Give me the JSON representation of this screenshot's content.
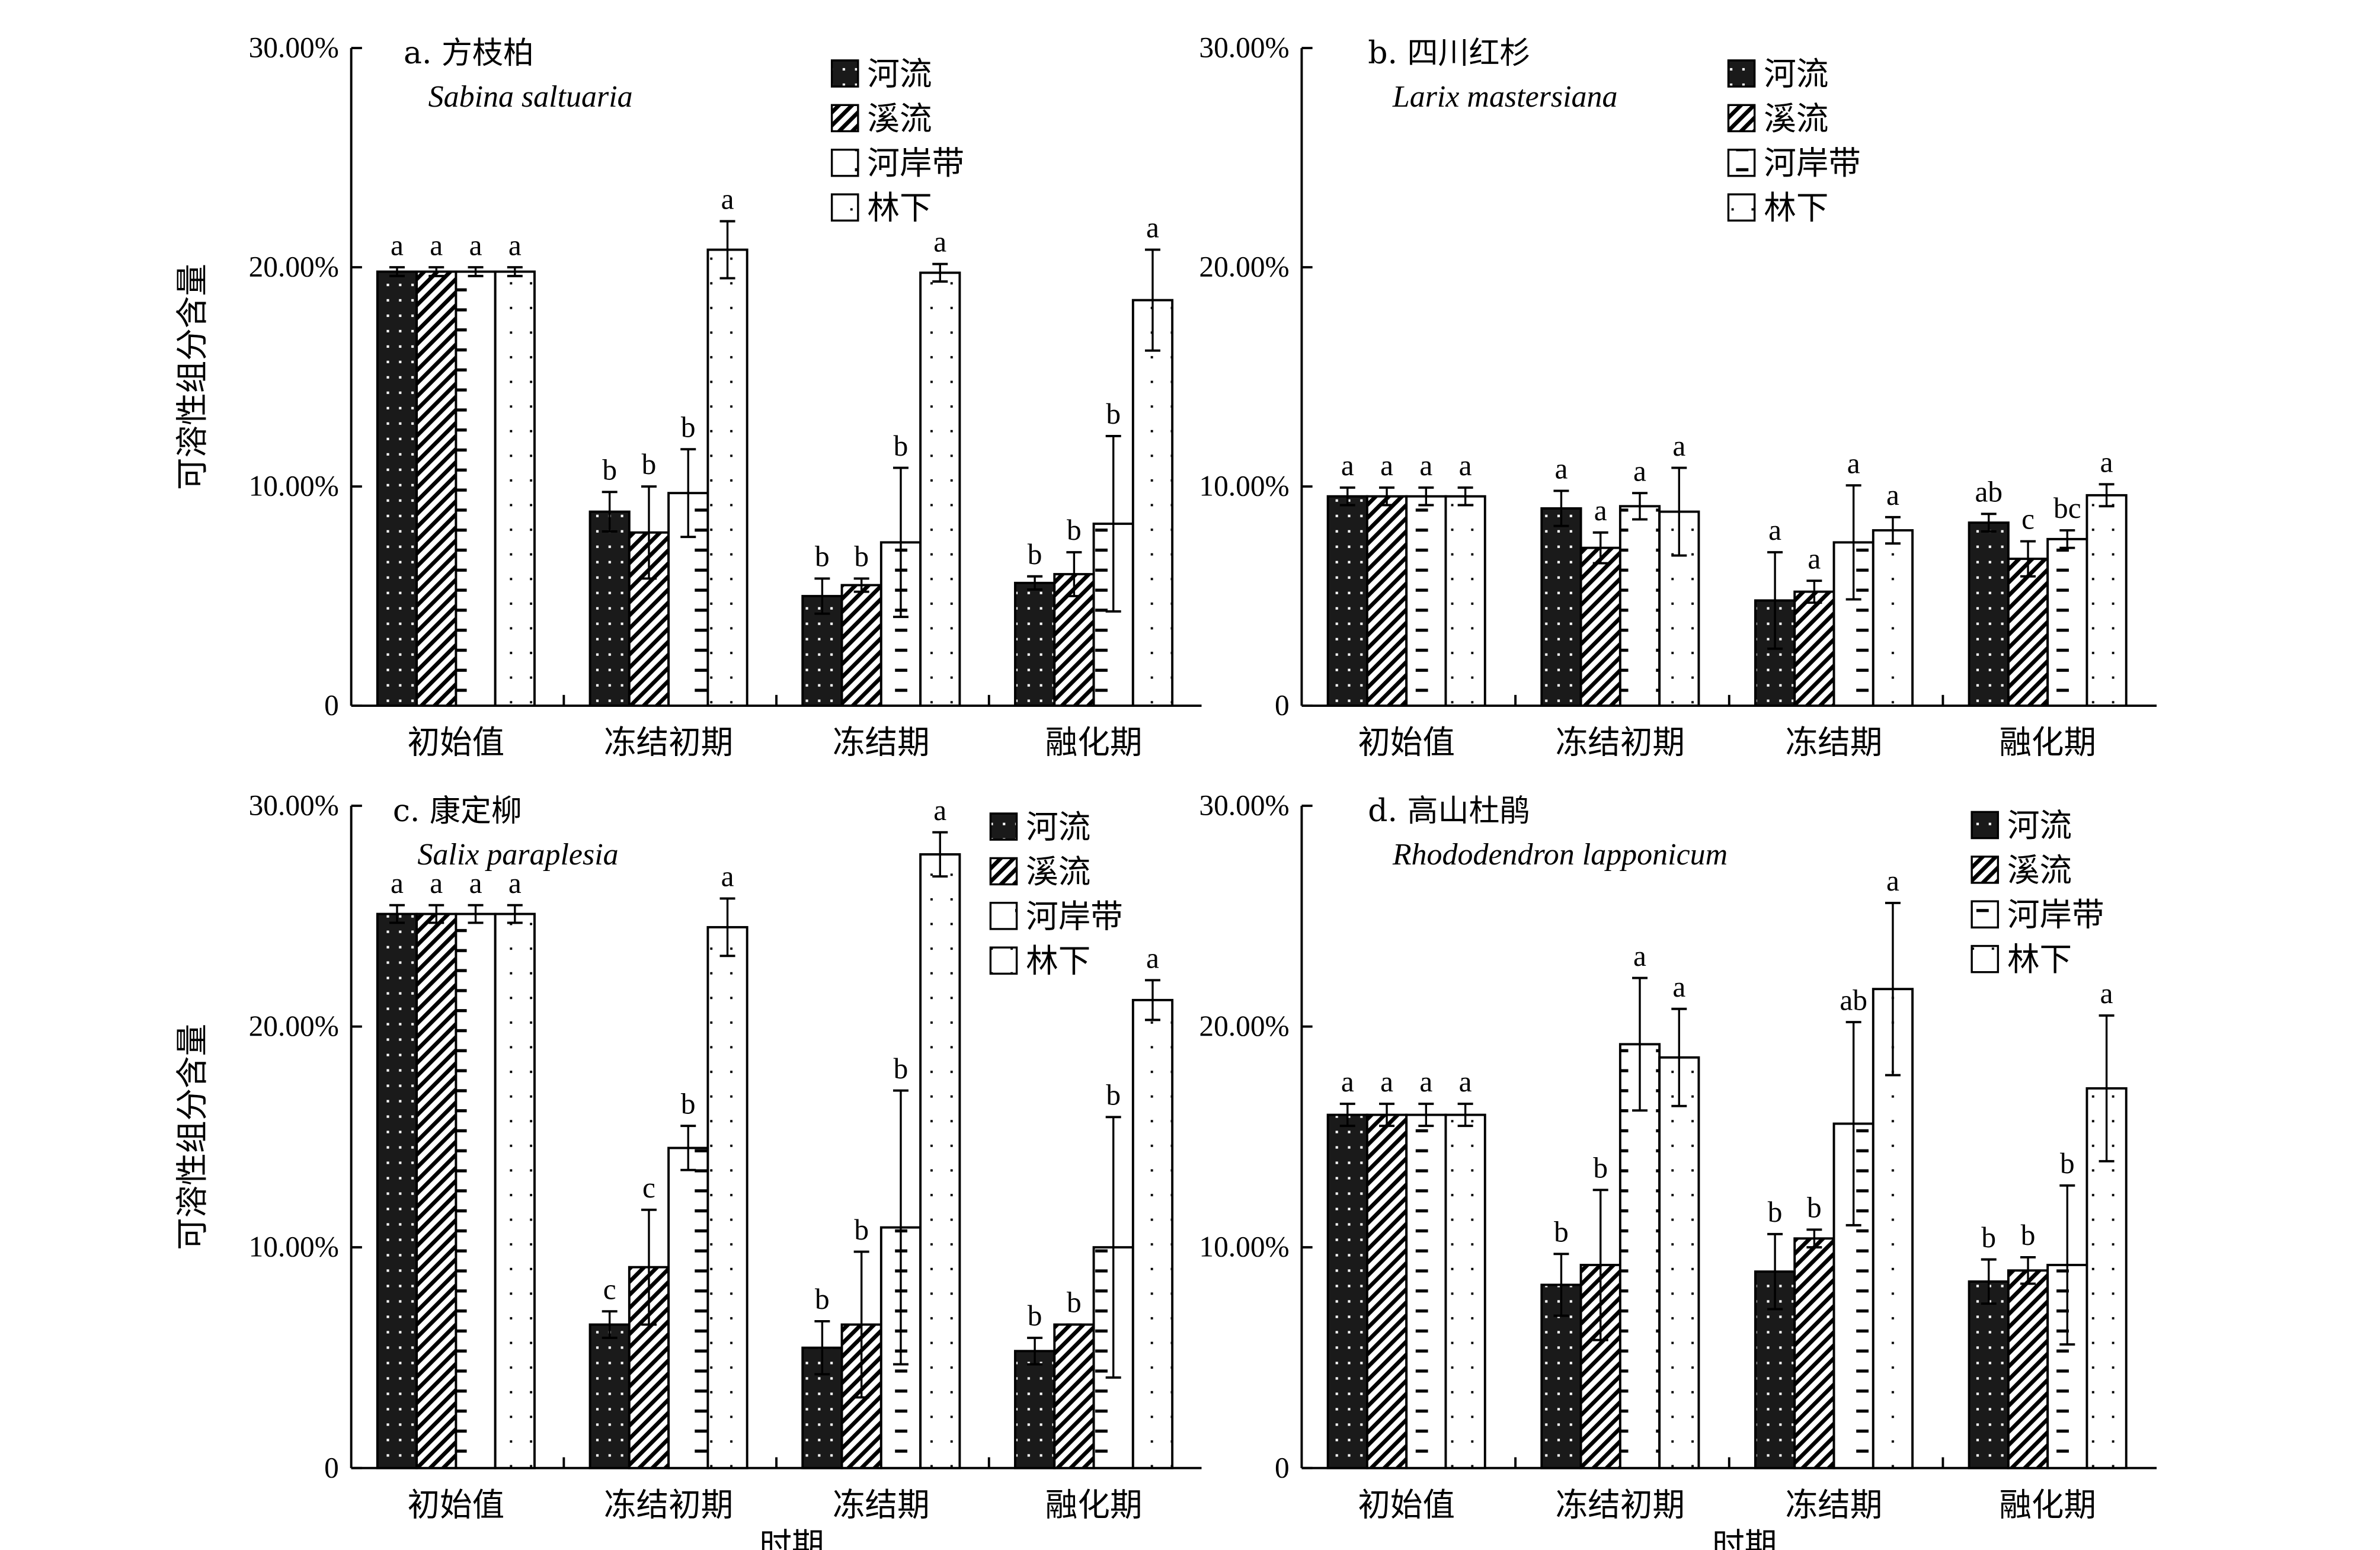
{
  "chart_data": [
    {
      "type": "bar",
      "panel": "a",
      "title": "a. 方枝柏",
      "subtitle": "Sabina saltuaria",
      "xlabel": "",
      "ylabel": "可溶性组分含量",
      "ylim": [
        0,
        30
      ],
      "yticks": [
        "0",
        "10.00%",
        "20.00%",
        "30.00%"
      ],
      "categories": [
        "初始值",
        "冻结初期",
        "冻结期",
        "融化期"
      ],
      "legend_position": "top-right",
      "series": [
        {
          "name": "河流",
          "pattern": "dots-on-black",
          "values": [
            19.8,
            8.85,
            5.0,
            5.6
          ],
          "errors": [
            0.2,
            0.9,
            0.8,
            0.3
          ],
          "letters": [
            "a",
            "b",
            "b",
            "b"
          ]
        },
        {
          "name": "溪流",
          "pattern": "diagonal-hatch",
          "values": [
            19.8,
            7.9,
            5.5,
            6.0
          ],
          "errors": [
            0.2,
            2.1,
            0.3,
            1.0
          ],
          "letters": [
            "a",
            "b",
            "b",
            "b"
          ]
        },
        {
          "name": "河岸带",
          "pattern": "dashes",
          "values": [
            19.8,
            9.7,
            7.45,
            8.3
          ],
          "errors": [
            0.2,
            2.0,
            3.4,
            4.0
          ],
          "letters": [
            "a",
            "b",
            "b",
            "b"
          ]
        },
        {
          "name": "林下",
          "pattern": "sparse-dots",
          "values": [
            19.8,
            20.8,
            19.75,
            18.5
          ],
          "errors": [
            0.2,
            1.3,
            0.4,
            2.3
          ],
          "letters": [
            "a",
            "a",
            "a",
            "a"
          ]
        }
      ]
    },
    {
      "type": "bar",
      "panel": "b",
      "title": "b. 四川红杉",
      "subtitle": "Larix mastersiana",
      "xlabel": "",
      "ylabel": "",
      "ylim": [
        0,
        30
      ],
      "yticks": [
        "0",
        "10.00%",
        "20.00%",
        "30.00%"
      ],
      "categories": [
        "初始值",
        "冻结初期",
        "冻结期",
        "融化期"
      ],
      "legend_position": "top-right",
      "series": [
        {
          "name": "河流",
          "pattern": "dots-on-black",
          "values": [
            9.55,
            9.0,
            4.8,
            8.35
          ],
          "errors": [
            0.4,
            0.8,
            2.2,
            0.4
          ],
          "letters": [
            "a",
            "a",
            "a",
            "ab"
          ]
        },
        {
          "name": "溪流",
          "pattern": "diagonal-hatch",
          "values": [
            9.55,
            7.2,
            5.2,
            6.7
          ],
          "errors": [
            0.4,
            0.7,
            0.5,
            0.8
          ],
          "letters": [
            "a",
            "a",
            "a",
            "c"
          ]
        },
        {
          "name": "河岸带",
          "pattern": "dashes",
          "values": [
            9.55,
            9.1,
            7.45,
            7.6
          ],
          "errors": [
            0.4,
            0.6,
            2.6,
            0.4
          ],
          "letters": [
            "a",
            "a",
            "a",
            "bc"
          ]
        },
        {
          "name": "林下",
          "pattern": "sparse-dots",
          "values": [
            9.55,
            8.85,
            8.0,
            9.6
          ],
          "errors": [
            0.4,
            2.0,
            0.6,
            0.5
          ],
          "letters": [
            "a",
            "a",
            "a",
            "a"
          ]
        }
      ]
    },
    {
      "type": "bar",
      "panel": "c",
      "title": "c. 康定柳",
      "subtitle": "Salix paraplesia",
      "xlabel": "时期",
      "ylabel": "可溶性组分含量",
      "ylim": [
        0,
        30
      ],
      "yticks": [
        "0",
        "10.00%",
        "20.00%",
        "30.00%"
      ],
      "categories": [
        "初始值",
        "冻结初期",
        "冻结期",
        "融化期"
      ],
      "legend_position": "top-center",
      "series": [
        {
          "name": "河流",
          "pattern": "dots-on-black",
          "values": [
            25.1,
            6.5,
            5.45,
            5.3
          ],
          "errors": [
            0.4,
            0.6,
            1.2,
            0.6
          ],
          "letters": [
            "a",
            "c",
            "b",
            "b"
          ]
        },
        {
          "name": "溪流",
          "pattern": "diagonal-hatch",
          "values": [
            25.1,
            9.1,
            6.5,
            6.5
          ],
          "errors": [
            0.4,
            2.6,
            3.3,
            0.0
          ],
          "letters": [
            "a",
            "c",
            "b",
            "b"
          ]
        },
        {
          "name": "河岸带",
          "pattern": "dashes",
          "values": [
            25.1,
            14.5,
            10.9,
            10.0
          ],
          "errors": [
            0.4,
            1.0,
            6.2,
            5.9
          ],
          "letters": [
            "a",
            "b",
            "b",
            "b"
          ]
        },
        {
          "name": "林下",
          "pattern": "sparse-dots",
          "values": [
            25.1,
            24.5,
            27.8,
            21.2
          ],
          "errors": [
            0.4,
            1.3,
            1.0,
            0.9
          ],
          "letters": [
            "a",
            "a",
            "a",
            "a"
          ]
        }
      ]
    },
    {
      "type": "bar",
      "panel": "d",
      "title": "d. 高山杜鹃",
      "subtitle": "Rhododendron lapponicum",
      "xlabel": "时期",
      "ylabel": "",
      "ylim": [
        0,
        30
      ],
      "yticks": [
        "0",
        "10.00%",
        "20.00%",
        "30.00%"
      ],
      "categories": [
        "初始值",
        "冻结初期",
        "冻结期",
        "融化期"
      ],
      "legend_position": "top-right",
      "series": [
        {
          "name": "河流",
          "pattern": "dots-on-black",
          "values": [
            16.0,
            8.3,
            8.9,
            8.45
          ],
          "errors": [
            0.5,
            1.4,
            1.7,
            1.0
          ],
          "letters": [
            "a",
            "b",
            "b",
            "b"
          ]
        },
        {
          "name": "溪流",
          "pattern": "diagonal-hatch",
          "values": [
            16.0,
            9.2,
            10.4,
            8.95
          ],
          "errors": [
            0.5,
            3.4,
            0.4,
            0.6
          ],
          "letters": [
            "a",
            "b",
            "b",
            "b"
          ]
        },
        {
          "name": "河岸带",
          "pattern": "dashes",
          "values": [
            16.0,
            19.2,
            15.6,
            9.2
          ],
          "errors": [
            0.5,
            3.0,
            4.6,
            3.6
          ],
          "letters": [
            "a",
            "a",
            "ab",
            "b"
          ]
        },
        {
          "name": "林下",
          "pattern": "sparse-dots",
          "values": [
            16.0,
            18.6,
            21.7,
            17.2
          ],
          "errors": [
            0.5,
            2.2,
            3.9,
            3.3
          ],
          "letters": [
            "a",
            "a",
            "a",
            "a"
          ]
        }
      ]
    }
  ]
}
